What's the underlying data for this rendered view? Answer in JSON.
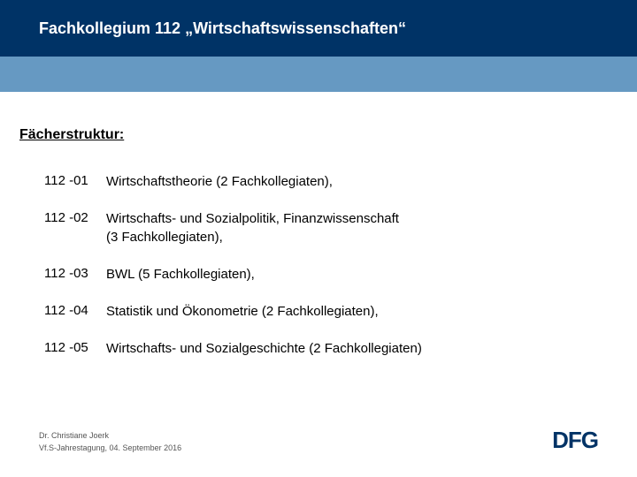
{
  "colors": {
    "title_bar_bg": "#003366",
    "accent_bar_bg": "#6699c2",
    "title_text": "#ffffff",
    "body_text": "#000000",
    "footer_text": "#555555",
    "logo_text": "#003366",
    "page_bg": "#ffffff"
  },
  "header": {
    "title": "Fachkollegium 112  „Wirtschaftswissenschaften“"
  },
  "section": {
    "title": "Fächerstruktur:"
  },
  "items": [
    {
      "code": "112 -01",
      "desc": "Wirtschaftstheorie  (2 Fachkollegiaten),"
    },
    {
      "code": "112 -02",
      "desc": "Wirtschafts- und Sozialpolitik, Finanzwissenschaft\n(3 Fachkollegiaten),"
    },
    {
      "code": "112 -03",
      "desc": "BWL  (5 Fachkollegiaten),"
    },
    {
      "code": "112 -04",
      "desc": "Statistik und Ökonometrie (2 Fachkollegiaten),"
    },
    {
      "code": "112 -05",
      "desc": "Wirtschafts- und Sozialgeschichte (2 Fachkollegiaten)"
    }
  ],
  "footer": {
    "line1": "Dr. Christiane Joerk",
    "line2": "Vf.S-Jahrestagung, 04. September 2016",
    "logo": "DFG"
  }
}
